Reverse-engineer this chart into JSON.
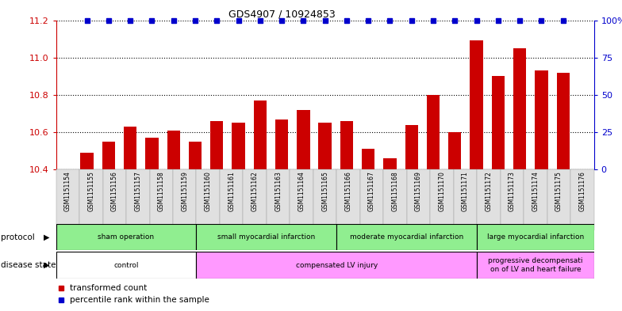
{
  "title": "GDS4907 / 10924853",
  "samples": [
    "GSM1151154",
    "GSM1151155",
    "GSM1151156",
    "GSM1151157",
    "GSM1151158",
    "GSM1151159",
    "GSM1151160",
    "GSM1151161",
    "GSM1151162",
    "GSM1151163",
    "GSM1151164",
    "GSM1151165",
    "GSM1151166",
    "GSM1151167",
    "GSM1151168",
    "GSM1151169",
    "GSM1151170",
    "GSM1151171",
    "GSM1151172",
    "GSM1151173",
    "GSM1151174",
    "GSM1151175",
    "GSM1151176"
  ],
  "values": [
    10.49,
    10.55,
    10.63,
    10.57,
    10.61,
    10.55,
    10.66,
    10.65,
    10.77,
    10.67,
    10.72,
    10.65,
    10.66,
    10.51,
    10.46,
    10.64,
    10.8,
    10.6,
    11.09,
    10.9,
    11.05,
    10.93,
    10.92
  ],
  "percentile": [
    100,
    100,
    100,
    100,
    100,
    100,
    100,
    100,
    100,
    100,
    100,
    100,
    100,
    100,
    100,
    100,
    100,
    100,
    100,
    100,
    100,
    100,
    100
  ],
  "ylim_left": [
    10.4,
    11.2
  ],
  "ylim_right": [
    0,
    100
  ],
  "yticks_left": [
    10.4,
    10.6,
    10.8,
    11.0,
    11.2
  ],
  "yticks_right": [
    0,
    25,
    50,
    75,
    100
  ],
  "bar_color": "#CC0000",
  "dot_color": "#0000CC",
  "bar_width": 0.6,
  "proto_borders": [
    0,
    6,
    12,
    18,
    23
  ],
  "proto_labels": [
    "sham operation",
    "small myocardial infarction",
    "moderate myocardial infarction",
    "large myocardial infarction"
  ],
  "proto_color": "#90EE90",
  "disease_borders": [
    0,
    6,
    18,
    23
  ],
  "disease_labels": [
    "control",
    "compensated LV injury",
    "progressive decompensati\non of LV and heart failure"
  ],
  "disease_colors": [
    "#FFFFFF",
    "#FF99FF",
    "#FF99FF"
  ],
  "legend_labels": [
    "transformed count",
    "percentile rank within the sample"
  ],
  "legend_colors": [
    "#CC0000",
    "#0000CC"
  ]
}
